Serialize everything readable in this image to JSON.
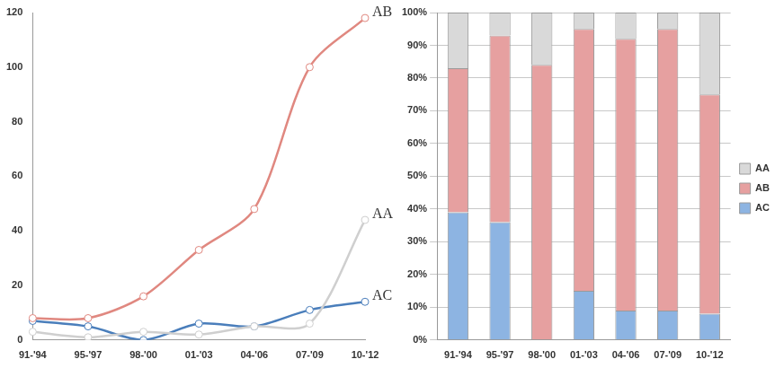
{
  "chart_data": [
    {
      "type": "line",
      "categories": [
        "91-'94",
        "95-'97",
        "98-'00",
        "01-'03",
        "04-'06",
        "07-'09",
        "10-'12"
      ],
      "series": [
        {
          "name": "AB",
          "color": "#e08880",
          "marker": "circle",
          "values": [
            8,
            8,
            16,
            33,
            48,
            100,
            118
          ]
        },
        {
          "name": "AA",
          "color": "#cfcfcf",
          "marker": "circle",
          "values": [
            3,
            1,
            3,
            2,
            5,
            6,
            44
          ]
        },
        {
          "name": "AC",
          "color": "#4a7ebb",
          "marker": "circle",
          "values": [
            7,
            5,
            0,
            6,
            5,
            11,
            14
          ]
        }
      ],
      "ylim": [
        0,
        120
      ],
      "yticks": [
        0,
        20,
        40,
        60,
        80,
        100,
        120
      ],
      "grid": false
    },
    {
      "type": "bar",
      "categories": [
        "91-'94",
        "95-'97",
        "98-'00",
        "01-'03",
        "04-'06",
        "07-'09",
        "10-'12"
      ],
      "series": [
        {
          "name": "AC",
          "color": "#8db4e2",
          "values": [
            39,
            36,
            0,
            15,
            9,
            9,
            8
          ]
        },
        {
          "name": "AB",
          "color": "#e6a0a0",
          "values": [
            44,
            57,
            84,
            80,
            83,
            86,
            67
          ]
        },
        {
          "name": "AA",
          "color": "#d9d9d9",
          "values": [
            17,
            7,
            16,
            5,
            8,
            5,
            25
          ]
        }
      ],
      "stacked": true,
      "ylim": [
        0,
        100
      ],
      "yticks": [
        {
          "value": 0,
          "label": "0%"
        },
        {
          "value": 10,
          "label": "10%"
        },
        {
          "value": 20,
          "label": "20%"
        },
        {
          "value": 30,
          "label": "30%"
        },
        {
          "value": 40,
          "label": "40%"
        },
        {
          "value": 50,
          "label": "50%"
        },
        {
          "value": 60,
          "label": "60%"
        },
        {
          "value": 70,
          "label": "70%"
        },
        {
          "value": 80,
          "label": "80%"
        },
        {
          "value": 90,
          "label": "90%"
        },
        {
          "value": 100,
          "label": "100%"
        }
      ],
      "grid": true,
      "legend": "right"
    }
  ]
}
